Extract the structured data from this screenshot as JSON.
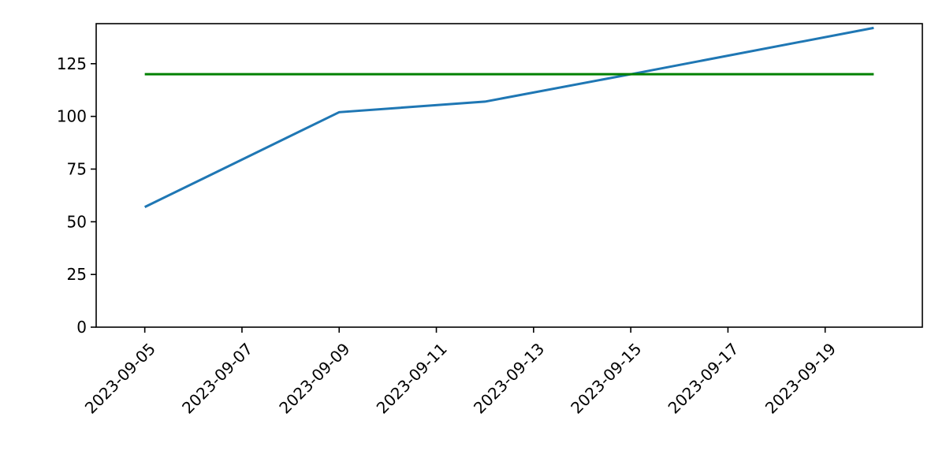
{
  "chart_data": {
    "type": "line",
    "title": "",
    "xlabel": "",
    "ylabel": "",
    "x_tick_labels": [
      "2023-09-05",
      "2023-09-07",
      "2023-09-09",
      "2023-09-11",
      "2023-09-13",
      "2023-09-15",
      "2023-09-17",
      "2023-09-19"
    ],
    "y_tick_labels": [
      "0",
      "25",
      "50",
      "75",
      "100",
      "125"
    ],
    "y_ticks": [
      0,
      25,
      50,
      75,
      100,
      125
    ],
    "xlim": [
      "2023-09-04",
      "2023-09-21"
    ],
    "ylim": [
      0,
      144
    ],
    "grid": false,
    "series": [
      {
        "color": "#1f77b4",
        "points": [
          {
            "x": "2023-09-05",
            "y": 57
          },
          {
            "x": "2023-09-09",
            "y": 102
          },
          {
            "x": "2023-09-12",
            "y": 107
          },
          {
            "x": "2023-09-15",
            "y": 120
          },
          {
            "x": "2023-09-20",
            "y": 142
          }
        ]
      },
      {
        "color": "#008000",
        "points": [
          {
            "x": "2023-09-05",
            "y": 120
          },
          {
            "x": "2023-09-20",
            "y": 120
          }
        ]
      }
    ]
  }
}
